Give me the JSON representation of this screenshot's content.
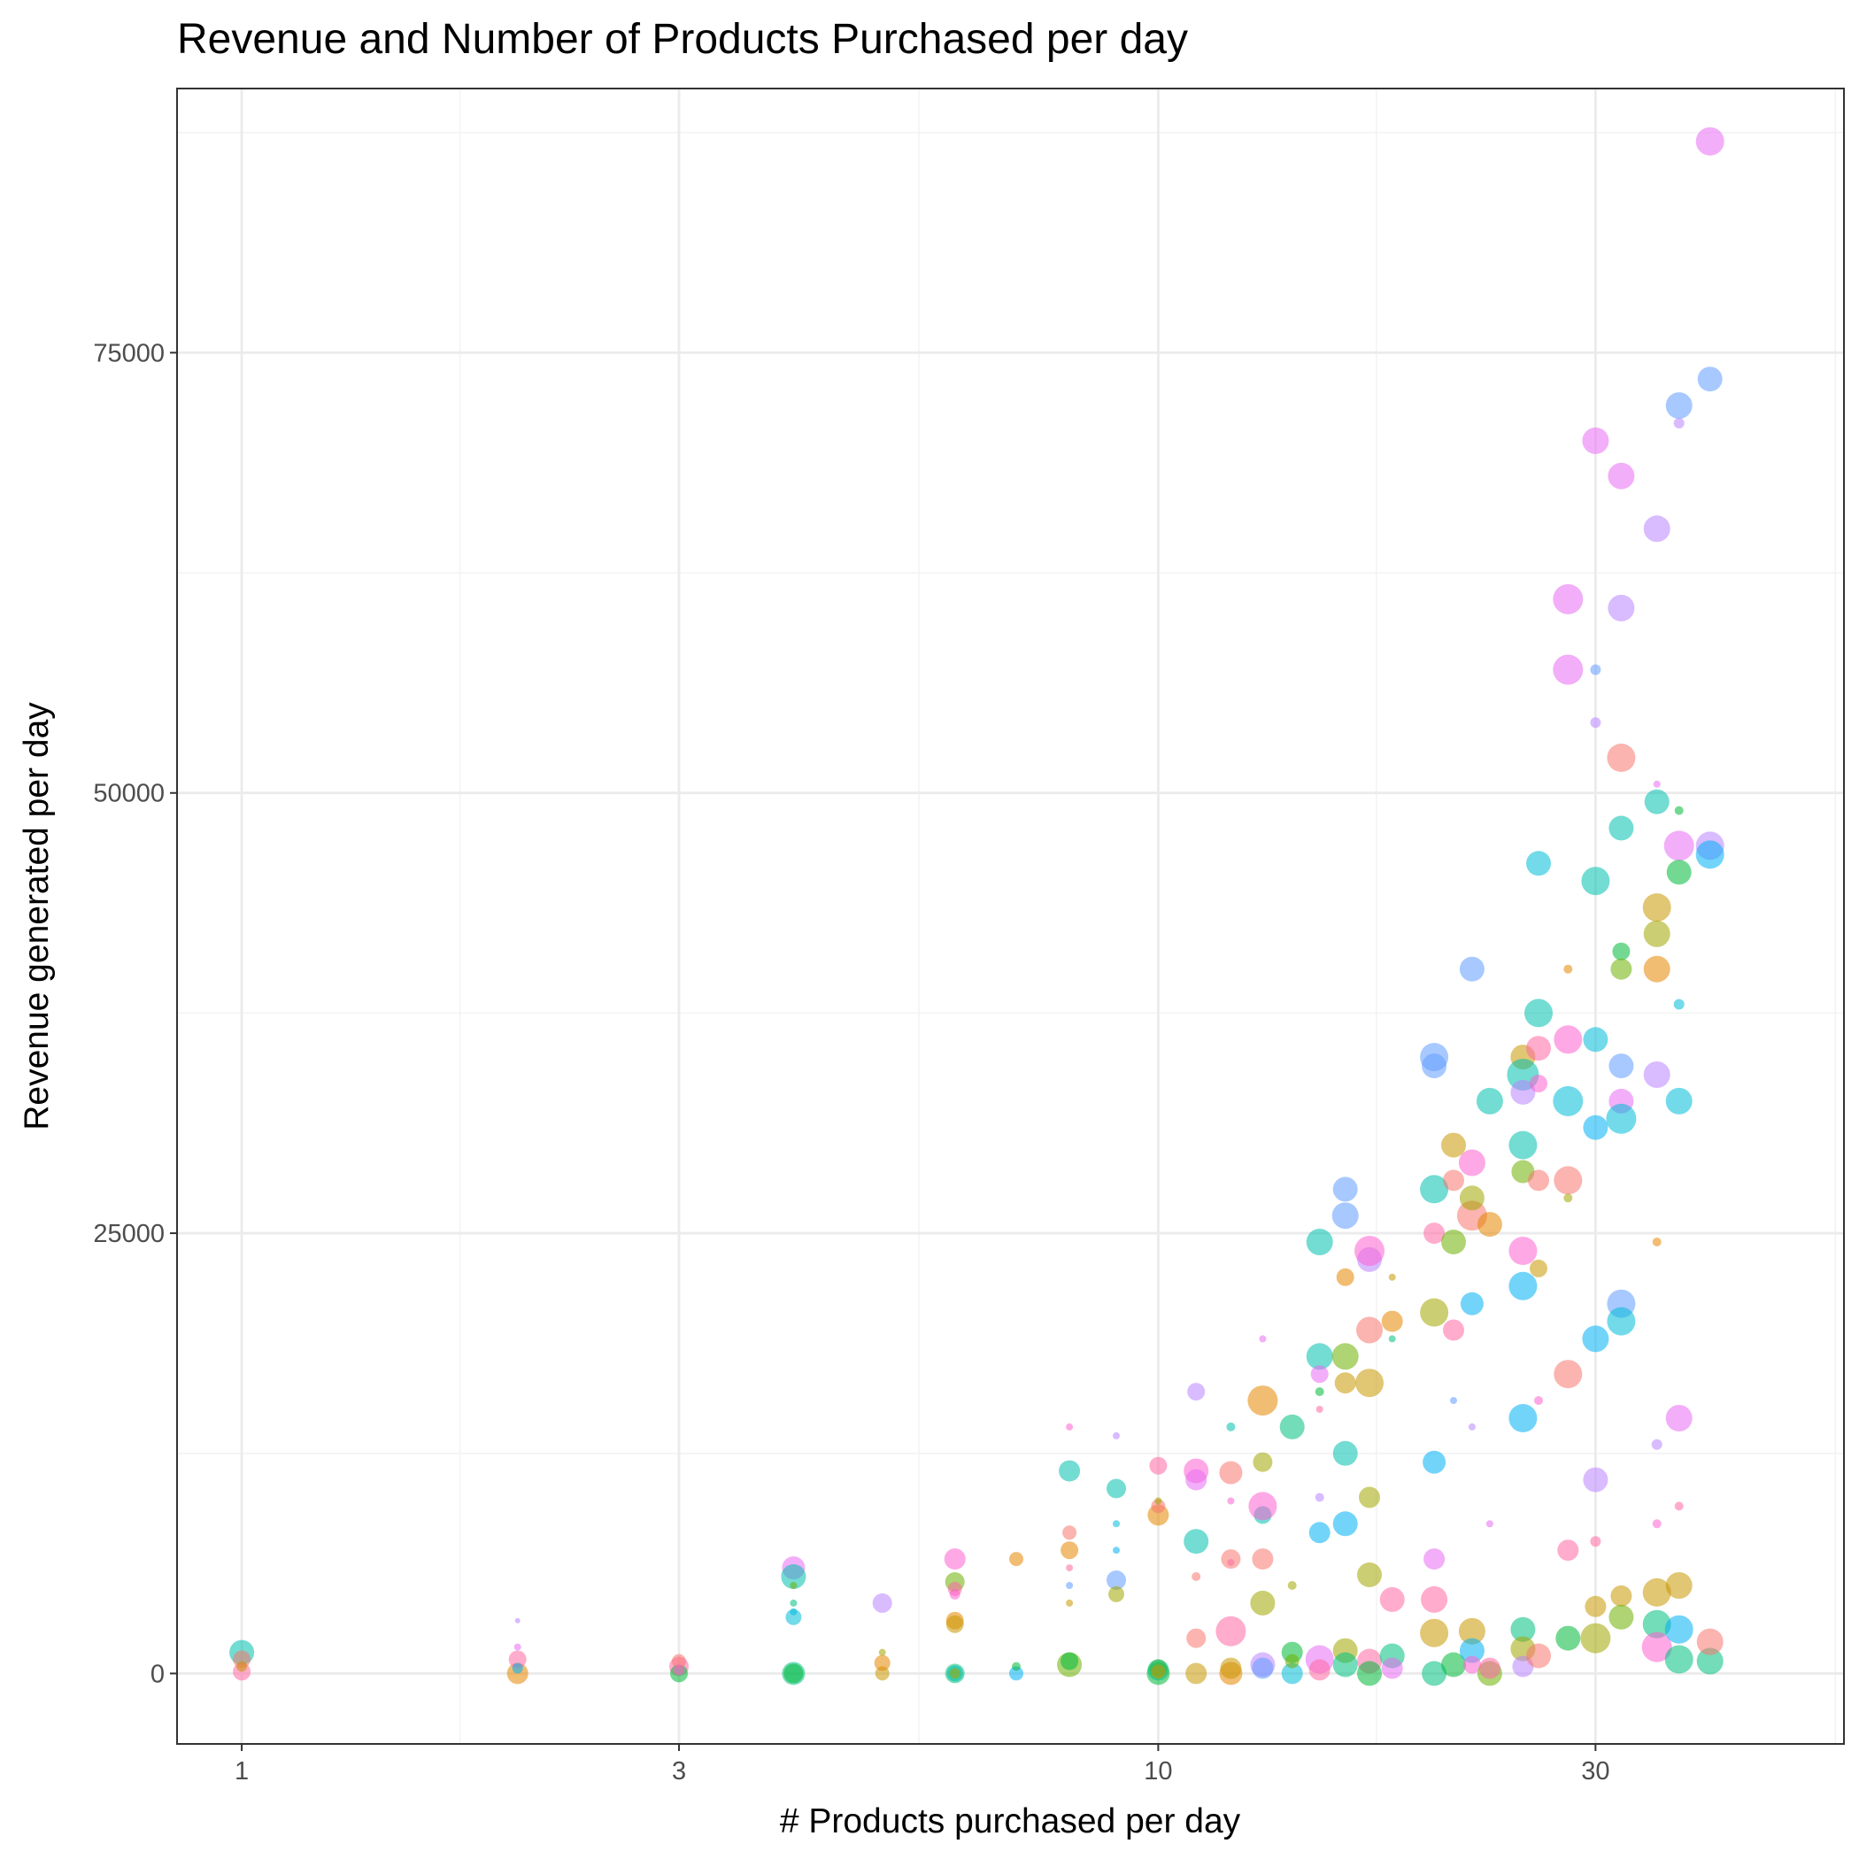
{
  "chart_data": {
    "type": "scatter",
    "title": "Revenue and Number of Products Purchased per day",
    "xlabel": "# Products purchased per day",
    "ylabel": "Revenue generated per day",
    "x_scale": "log10",
    "xlim": [
      0.85,
      56
    ],
    "ylim": [
      -4000,
      90000
    ],
    "x_ticks": [
      {
        "value": 1,
        "label": "1"
      },
      {
        "value": 3,
        "label": "3"
      },
      {
        "value": 10,
        "label": "10"
      },
      {
        "value": 30,
        "label": "30"
      }
    ],
    "x_minor": [
      1.73,
      5.48,
      17.3,
      54.8
    ],
    "y_ticks": [
      {
        "value": 0,
        "label": "0"
      },
      {
        "value": 25000,
        "label": "25000"
      },
      {
        "value": 50000,
        "label": "50000"
      },
      {
        "value": 75000,
        "label": "75000"
      }
    ],
    "y_minor": [
      12500,
      37500,
      62500,
      87500
    ],
    "grid": true,
    "legend": "none",
    "point_opacity": 0.55,
    "palette": [
      "#F8766D",
      "#E58700",
      "#C99800",
      "#A3A500",
      "#6BB100",
      "#00BA38",
      "#00BF7D",
      "#00C0AF",
      "#00BCD8",
      "#00B0F6",
      "#619CFF",
      "#B983FF",
      "#E76BF3",
      "#FD61D1",
      "#FF67A4"
    ],
    "points": [
      [
        1,
        1200,
        14,
        7
      ],
      [
        1,
        800,
        10,
        0
      ],
      [
        1,
        100,
        10,
        14
      ],
      [
        1,
        400,
        6,
        2
      ],
      [
        2,
        0,
        12,
        1
      ],
      [
        2,
        800,
        10,
        14
      ],
      [
        2,
        3000,
        3,
        11
      ],
      [
        2,
        300,
        6,
        9
      ],
      [
        2,
        1500,
        4,
        12
      ],
      [
        3,
        400,
        11,
        14
      ],
      [
        3,
        0,
        10,
        5
      ],
      [
        3,
        700,
        8,
        0
      ],
      [
        3,
        200,
        6,
        13
      ],
      [
        4,
        6000,
        13,
        12
      ],
      [
        4,
        5500,
        14,
        7
      ],
      [
        4,
        3200,
        9,
        8
      ],
      [
        4,
        0,
        13,
        6
      ],
      [
        4,
        0,
        11,
        5
      ],
      [
        4,
        4000,
        4,
        6
      ],
      [
        4,
        3500,
        4,
        8
      ],
      [
        4,
        5000,
        4,
        4
      ],
      [
        5,
        0,
        8,
        2
      ],
      [
        5,
        600,
        9,
        1
      ],
      [
        5,
        1200,
        4,
        3
      ],
      [
        5,
        4000,
        11,
        11
      ],
      [
        6,
        6500,
        12,
        13
      ],
      [
        6,
        5200,
        11,
        4
      ],
      [
        6,
        3000,
        10,
        1
      ],
      [
        6,
        2800,
        10,
        2
      ],
      [
        6,
        0,
        11,
        6
      ],
      [
        6,
        0,
        9,
        7
      ],
      [
        6,
        4800,
        8,
        14
      ],
      [
        6,
        4500,
        6,
        13
      ],
      [
        6,
        0,
        6,
        3
      ],
      [
        7,
        6500,
        8,
        1
      ],
      [
        7,
        0,
        8,
        9
      ],
      [
        7,
        400,
        5,
        5
      ],
      [
        8,
        11500,
        12,
        7
      ],
      [
        8,
        7000,
        10,
        1
      ],
      [
        8,
        8000,
        8,
        0
      ],
      [
        8,
        14000,
        4,
        13
      ],
      [
        8,
        6000,
        4,
        14
      ],
      [
        8,
        5000,
        4,
        10
      ],
      [
        8,
        4000,
        4,
        2
      ],
      [
        8,
        500,
        14,
        4
      ],
      [
        8,
        700,
        10,
        5
      ],
      [
        9,
        10500,
        11,
        7
      ],
      [
        9,
        5300,
        11,
        10
      ],
      [
        9,
        4500,
        9,
        3
      ],
      [
        9,
        8500,
        4,
        8
      ],
      [
        9,
        7000,
        4,
        9
      ],
      [
        9,
        13500,
        4,
        11
      ],
      [
        10,
        11800,
        10,
        14
      ],
      [
        10,
        9000,
        12,
        1
      ],
      [
        10,
        9500,
        8,
        0
      ],
      [
        10,
        9800,
        4,
        3
      ],
      [
        10,
        0,
        13,
        5
      ],
      [
        10,
        300,
        10,
        4
      ],
      [
        10,
        200,
        12,
        6
      ],
      [
        10,
        100,
        8,
        2
      ],
      [
        11,
        11500,
        14,
        13
      ],
      [
        11,
        11000,
        12,
        12
      ],
      [
        11,
        16000,
        10,
        11
      ],
      [
        11,
        7500,
        14,
        7
      ],
      [
        11,
        2000,
        11,
        0
      ],
      [
        11,
        0,
        12,
        2
      ],
      [
        11,
        5500,
        5,
        0
      ],
      [
        12,
        11400,
        13,
        0
      ],
      [
        12,
        2400,
        17,
        14
      ],
      [
        12,
        14000,
        5,
        7
      ],
      [
        12,
        6500,
        11,
        0
      ],
      [
        12,
        0,
        13,
        1
      ],
      [
        12,
        300,
        12,
        2
      ],
      [
        12,
        6300,
        4,
        14
      ],
      [
        12,
        9800,
        4,
        13
      ],
      [
        13,
        15500,
        17,
        1
      ],
      [
        13,
        12000,
        11,
        3
      ],
      [
        13,
        9000,
        10,
        7
      ],
      [
        13,
        9500,
        16,
        13
      ],
      [
        13,
        6500,
        12,
        0
      ],
      [
        13,
        4000,
        14,
        3
      ],
      [
        13,
        500,
        14,
        11
      ],
      [
        13,
        19000,
        4,
        12
      ],
      [
        13,
        300,
        12,
        10
      ],
      [
        14,
        14000,
        14,
        6
      ],
      [
        14,
        1200,
        12,
        5
      ],
      [
        14,
        0,
        12,
        8
      ],
      [
        14,
        700,
        8,
        4
      ],
      [
        14,
        5000,
        5,
        3
      ],
      [
        15,
        18000,
        15,
        7
      ],
      [
        15,
        24500,
        15,
        7
      ],
      [
        15,
        17000,
        10,
        12
      ],
      [
        15,
        15000,
        4,
        14
      ],
      [
        15,
        8000,
        12,
        9
      ],
      [
        15,
        10000,
        5,
        11
      ],
      [
        15,
        16000,
        5,
        5
      ],
      [
        15,
        800,
        16,
        12
      ],
      [
        15,
        200,
        12,
        14
      ],
      [
        16,
        26000,
        15,
        10
      ],
      [
        16,
        27500,
        14,
        10
      ],
      [
        16,
        22500,
        10,
        1
      ],
      [
        16,
        18000,
        15,
        4
      ],
      [
        16,
        16500,
        12,
        2
      ],
      [
        16,
        12500,
        14,
        7
      ],
      [
        16,
        8500,
        14,
        9
      ],
      [
        16,
        1300,
        14,
        3
      ],
      [
        16,
        500,
        14,
        6
      ],
      [
        17,
        23500,
        14,
        11
      ],
      [
        17,
        24000,
        17,
        13
      ],
      [
        17,
        19500,
        15,
        0
      ],
      [
        17,
        16500,
        16,
        2
      ],
      [
        17,
        10000,
        12,
        3
      ],
      [
        17,
        5600,
        14,
        3
      ],
      [
        17,
        700,
        14,
        14
      ],
      [
        17,
        0,
        14,
        5
      ],
      [
        18,
        22500,
        4,
        2
      ],
      [
        18,
        20000,
        12,
        1
      ],
      [
        18,
        19000,
        4,
        6
      ],
      [
        18,
        4200,
        14,
        14
      ],
      [
        18,
        1000,
        14,
        6
      ],
      [
        18,
        300,
        12,
        12
      ],
      [
        20,
        34500,
        14,
        10
      ],
      [
        20,
        35000,
        16,
        10
      ],
      [
        20,
        27500,
        16,
        7
      ],
      [
        20,
        25000,
        12,
        14
      ],
      [
        20,
        20500,
        16,
        3
      ],
      [
        20,
        12000,
        13,
        9
      ],
      [
        20,
        6500,
        12,
        12
      ],
      [
        20,
        4200,
        15,
        14
      ],
      [
        20,
        2300,
        16,
        2
      ],
      [
        20,
        0,
        14,
        6
      ],
      [
        21,
        30000,
        14,
        2
      ],
      [
        21,
        28000,
        12,
        0
      ],
      [
        21,
        24500,
        14,
        4
      ],
      [
        21,
        19500,
        12,
        14
      ],
      [
        21,
        15500,
        4,
        10
      ],
      [
        21,
        500,
        14,
        5
      ],
      [
        22,
        40000,
        14,
        10
      ],
      [
        22,
        29000,
        15,
        13
      ],
      [
        22,
        26000,
        17,
        0
      ],
      [
        22,
        27000,
        14,
        3
      ],
      [
        22,
        21000,
        13,
        9
      ],
      [
        22,
        14000,
        4,
        11
      ],
      [
        22,
        2400,
        15,
        2
      ],
      [
        22,
        1300,
        14,
        9
      ],
      [
        22,
        500,
        10,
        13
      ],
      [
        23,
        32500,
        15,
        7
      ],
      [
        23,
        25500,
        14,
        1
      ],
      [
        23,
        8500,
        4,
        12
      ],
      [
        23,
        0,
        14,
        4
      ],
      [
        23,
        300,
        12,
        14
      ],
      [
        25,
        35000,
        14,
        2
      ],
      [
        25,
        34000,
        18,
        7
      ],
      [
        25,
        33000,
        14,
        11
      ],
      [
        25,
        30000,
        16,
        7
      ],
      [
        25,
        28500,
        13,
        4
      ],
      [
        25,
        24000,
        16,
        13
      ],
      [
        25,
        22000,
        16,
        9
      ],
      [
        25,
        14500,
        16,
        9
      ],
      [
        25,
        2500,
        14,
        6
      ],
      [
        25,
        1400,
        14,
        3
      ],
      [
        25,
        400,
        12,
        11
      ],
      [
        26,
        37500,
        16,
        7
      ],
      [
        26,
        46000,
        14,
        8
      ],
      [
        26,
        35500,
        14,
        14
      ],
      [
        26,
        33500,
        10,
        13
      ],
      [
        26,
        28000,
        12,
        0
      ],
      [
        26,
        23000,
        10,
        2
      ],
      [
        26,
        15500,
        5,
        13
      ],
      [
        26,
        1000,
        14,
        0
      ],
      [
        28,
        61000,
        17,
        12
      ],
      [
        28,
        57000,
        17,
        12
      ],
      [
        28,
        40000,
        5,
        1
      ],
      [
        28,
        36000,
        16,
        13
      ],
      [
        28,
        32500,
        17,
        8
      ],
      [
        28,
        28000,
        16,
        0
      ],
      [
        28,
        27000,
        5,
        3
      ],
      [
        28,
        17000,
        16,
        0
      ],
      [
        28,
        7000,
        12,
        14
      ],
      [
        28,
        2000,
        14,
        5
      ],
      [
        30,
        70000,
        15,
        12
      ],
      [
        30,
        57000,
        6,
        10
      ],
      [
        30,
        54000,
        6,
        11
      ],
      [
        30,
        45000,
        16,
        7
      ],
      [
        30,
        36000,
        14,
        8
      ],
      [
        30,
        31000,
        14,
        9
      ],
      [
        30,
        19000,
        15,
        9
      ],
      [
        30,
        11000,
        14,
        11
      ],
      [
        30,
        7500,
        6,
        14
      ],
      [
        30,
        3800,
        12,
        2
      ],
      [
        30,
        2000,
        17,
        3
      ],
      [
        32,
        68000,
        15,
        12
      ],
      [
        32,
        60500,
        15,
        11
      ],
      [
        32,
        52000,
        16,
        0
      ],
      [
        32,
        48000,
        14,
        7
      ],
      [
        32,
        41000,
        10,
        5
      ],
      [
        32,
        40000,
        12,
        4
      ],
      [
        32,
        34500,
        14,
        10
      ],
      [
        32,
        32500,
        14,
        12
      ],
      [
        32,
        31500,
        17,
        8
      ],
      [
        32,
        21000,
        16,
        10
      ],
      [
        32,
        20000,
        16,
        8
      ],
      [
        32,
        4400,
        12,
        2
      ],
      [
        32,
        3200,
        14,
        4
      ],
      [
        35,
        65000,
        15,
        11
      ],
      [
        35,
        50500,
        4,
        12
      ],
      [
        35,
        49500,
        14,
        7
      ],
      [
        35,
        43500,
        16,
        2
      ],
      [
        35,
        42000,
        15,
        3
      ],
      [
        35,
        40000,
        15,
        1
      ],
      [
        35,
        34000,
        15,
        11
      ],
      [
        35,
        24500,
        5,
        1
      ],
      [
        35,
        13000,
        6,
        11
      ],
      [
        35,
        8500,
        5,
        13
      ],
      [
        35,
        4600,
        16,
        2
      ],
      [
        35,
        2800,
        16,
        6
      ],
      [
        35,
        1500,
        17,
        13
      ],
      [
        37,
        72000,
        15,
        10
      ],
      [
        37,
        71000,
        6,
        11
      ],
      [
        37,
        49000,
        5,
        5
      ],
      [
        37,
        47000,
        17,
        12
      ],
      [
        37,
        45500,
        14,
        5
      ],
      [
        37,
        38000,
        6,
        8
      ],
      [
        37,
        32500,
        15,
        8
      ],
      [
        37,
        14500,
        15,
        12
      ],
      [
        37,
        9500,
        5,
        14
      ],
      [
        37,
        5000,
        15,
        2
      ],
      [
        37,
        2500,
        16,
        9
      ],
      [
        37,
        800,
        16,
        6
      ],
      [
        40,
        87000,
        16,
        12
      ],
      [
        40,
        73500,
        14,
        10
      ],
      [
        40,
        47000,
        16,
        11
      ],
      [
        40,
        46500,
        16,
        9
      ],
      [
        40,
        700,
        15,
        6
      ],
      [
        40,
        1800,
        15,
        0
      ]
    ]
  }
}
